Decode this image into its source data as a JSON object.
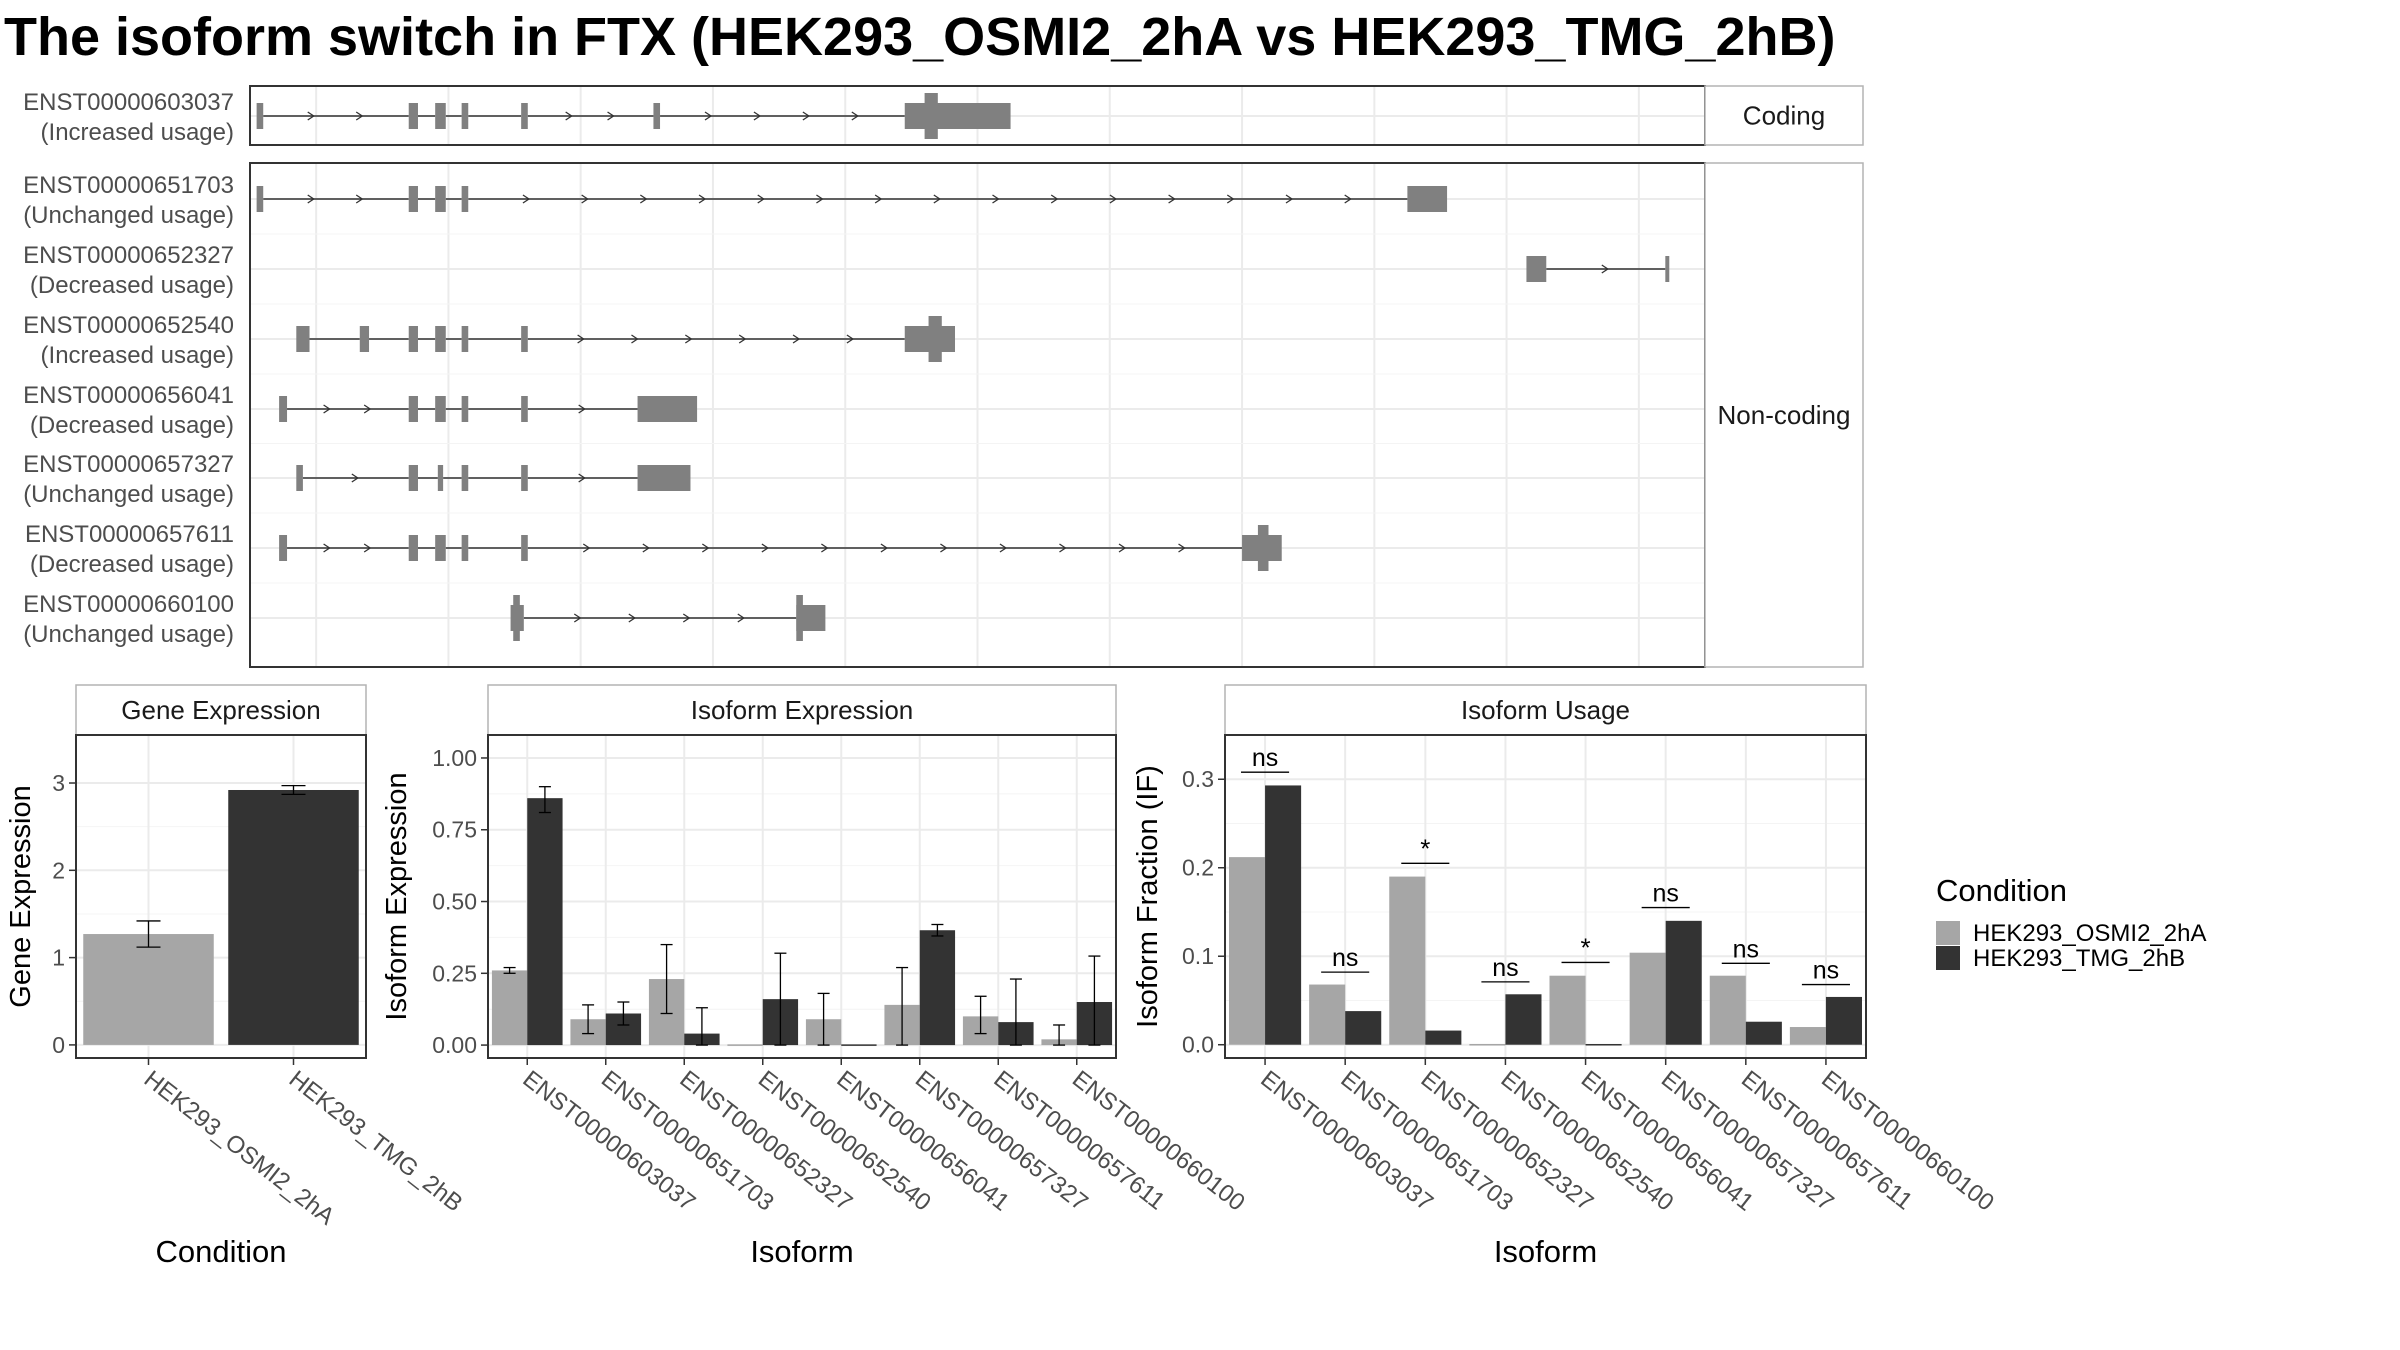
{
  "title": "The isoform switch in FTX (HEK293_OSMI2_2hA vs HEK293_TMG_2hB)",
  "colors": {
    "condition_a": "#a6a6a6",
    "condition_b": "#333333",
    "exon": "#808080",
    "grid": "#ebebeb",
    "panel_border": "#333333",
    "strip_border": "#b3b3b3",
    "strip_fill": "#ffffff"
  },
  "chart_data": [
    {
      "type": "other",
      "name": "transcript-structure",
      "facets": [
        "Coding",
        "Non-coding"
      ],
      "grid": true,
      "transcripts": [
        {
          "id": "ENST00000603037",
          "usage": "(Increased usage)",
          "facet": "Coding",
          "exons": [
            [
              0.5,
              1
            ],
            [
              12,
              12.7
            ],
            [
              14,
              14.8
            ],
            [
              16,
              16.5
            ],
            [
              20.5,
              21
            ],
            [
              30.5,
              31
            ],
            [
              49.5,
              57.5
            ]
          ],
          "cds": [
            [
              51,
              52
            ]
          ]
        },
        {
          "id": "ENST00000651703",
          "usage": "(Unchanged usage)",
          "facet": "Non-coding",
          "exons": [
            [
              0.5,
              1
            ],
            [
              12,
              12.7
            ],
            [
              14,
              14.8
            ],
            [
              16,
              16.5
            ],
            [
              87.5,
              90.5
            ]
          ]
        },
        {
          "id": "ENST00000652327",
          "usage": "(Decreased usage)",
          "facet": "Non-coding",
          "exons": [
            [
              96.5,
              98
            ],
            [
              107,
              107.3
            ]
          ]
        },
        {
          "id": "ENST00000652540",
          "usage": "(Increased usage)",
          "facet": "Non-coding",
          "exons": [
            [
              3.5,
              4.5
            ],
            [
              8.3,
              9
            ],
            [
              12,
              12.7
            ],
            [
              14,
              14.8
            ],
            [
              16,
              16.5
            ],
            [
              20.5,
              21
            ],
            [
              49.5,
              53.3
            ]
          ],
          "cds": [
            [
              51.3,
              52.3
            ]
          ]
        },
        {
          "id": "ENST00000656041",
          "usage": "(Decreased usage)",
          "facet": "Non-coding",
          "exons": [
            [
              2.2,
              2.8
            ],
            [
              12,
              12.7
            ],
            [
              14,
              14.8
            ],
            [
              16,
              16.5
            ],
            [
              20.5,
              21
            ],
            [
              29.3,
              33.8
            ]
          ]
        },
        {
          "id": "ENST00000657327",
          "usage": "(Unchanged usage)",
          "facet": "Non-coding",
          "exons": [
            [
              3.5,
              4
            ],
            [
              12,
              12.7
            ],
            [
              14.2,
              14.6
            ],
            [
              16,
              16.5
            ],
            [
              20.5,
              21
            ],
            [
              29.3,
              33.3
            ]
          ]
        },
        {
          "id": "ENST00000657611",
          "usage": "(Decreased usage)",
          "facet": "Non-coding",
          "exons": [
            [
              2.2,
              2.8
            ],
            [
              12,
              12.7
            ],
            [
              14,
              14.8
            ],
            [
              16,
              16.5
            ],
            [
              20.5,
              21
            ],
            [
              75,
              78
            ]
          ],
          "cds": [
            [
              76.2,
              77
            ]
          ]
        },
        {
          "id": "ENST00000660100",
          "usage": "(Unchanged usage)",
          "facet": "Non-coding",
          "exons": [
            [
              19.7,
              20.7
            ],
            [
              41.3,
              43.5
            ]
          ],
          "cds": [
            [
              19.9,
              20.4
            ],
            [
              41.3,
              41.8
            ]
          ]
        }
      ]
    },
    {
      "type": "bar",
      "name": "gene-expression",
      "title": "Gene Expression",
      "xlabel": "Condition",
      "ylabel": "Gene Expression",
      "categories": [
        "HEK293_OSMI2_2hA",
        "HEK293_TMG_2hB"
      ],
      "values": [
        1.27,
        2.92
      ],
      "errors": [
        [
          1.12,
          1.42
        ],
        [
          2.87,
          2.97
        ]
      ],
      "ylim": [
        -0.15,
        3.55
      ],
      "yticks": [
        0,
        1,
        2,
        3
      ],
      "ytick_labels": [
        "0",
        "1",
        "2",
        "3"
      ]
    },
    {
      "type": "bar",
      "name": "isoform-expression",
      "title": "Isoform Expression",
      "xlabel": "Isoform",
      "ylabel": "Isoform Expression",
      "categories": [
        "ENST00000603037",
        "ENST00000651703",
        "ENST00000652327",
        "ENST00000652540",
        "ENST00000656041",
        "ENST00000657327",
        "ENST00000657611",
        "ENST00000660100"
      ],
      "series": [
        {
          "values": [
            0.26,
            0.09,
            0.23,
            0.0,
            0.09,
            0.14,
            0.1,
            0.02
          ],
          "errors": [
            [
              0.25,
              0.27
            ],
            [
              0.04,
              0.14
            ],
            [
              0.11,
              0.35
            ],
            [
              0,
              0
            ],
            [
              0,
              0.18
            ],
            [
              0,
              0.27
            ],
            [
              0.04,
              0.17
            ],
            [
              0,
              0.07
            ]
          ]
        },
        {
          "values": [
            0.86,
            0.11,
            0.04,
            0.16,
            0.0,
            0.4,
            0.08,
            0.15
          ],
          "errors": [
            [
              0.81,
              0.9
            ],
            [
              0.07,
              0.15
            ],
            [
              0,
              0.13
            ],
            [
              0,
              0.32
            ],
            [
              0,
              0
            ],
            [
              0.38,
              0.42
            ],
            [
              0,
              0.23
            ],
            [
              0,
              0.31
            ]
          ]
        }
      ],
      "ylim": [
        -0.045,
        1.08
      ],
      "yticks": [
        0,
        0.25,
        0.5,
        0.75,
        1.0
      ],
      "ytick_labels": [
        "0.00",
        "0.25",
        "0.50",
        "0.75",
        "1.00"
      ]
    },
    {
      "type": "bar",
      "name": "isoform-usage",
      "title": "Isoform Usage",
      "xlabel": "Isoform",
      "ylabel": "Isoform Fraction (IF)",
      "categories": [
        "ENST00000603037",
        "ENST00000651703",
        "ENST00000652327",
        "ENST00000652540",
        "ENST00000656041",
        "ENST00000657327",
        "ENST00000657611",
        "ENST00000660100"
      ],
      "series": [
        {
          "values": [
            0.212,
            0.068,
            0.19,
            0.0,
            0.078,
            0.104,
            0.078,
            0.02
          ]
        },
        {
          "values": [
            0.293,
            0.038,
            0.016,
            0.057,
            0.0,
            0.14,
            0.026,
            0.054
          ]
        }
      ],
      "significance": [
        "ns",
        "ns",
        "*",
        "ns",
        "*",
        "ns",
        "ns",
        "ns"
      ],
      "significance_y": [
        0.308,
        0.082,
        0.205,
        0.071,
        0.093,
        0.155,
        0.092,
        0.068
      ],
      "ylim": [
        -0.015,
        0.35
      ],
      "yticks": [
        0,
        0.1,
        0.2,
        0.3
      ],
      "ytick_labels": [
        "0.0",
        "0.1",
        "0.2",
        "0.3"
      ]
    }
  ],
  "legend": {
    "title": "Condition",
    "position": "right",
    "entries": [
      "HEK293_OSMI2_2hA",
      "HEK293_TMG_2hB"
    ]
  }
}
